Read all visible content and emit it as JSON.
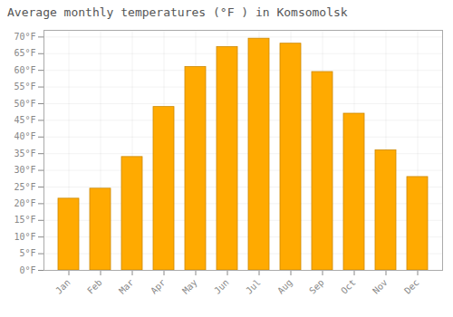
{
  "chart_data": {
    "type": "bar",
    "title": "Average monthly temperatures (°F ) in Komsomolsk",
    "categories": [
      "Jan",
      "Feb",
      "Mar",
      "Apr",
      "May",
      "Jun",
      "Jul",
      "Aug",
      "Sep",
      "Oct",
      "Nov",
      "Dec"
    ],
    "values": [
      21.5,
      24.5,
      34.0,
      49.0,
      61.0,
      67.0,
      69.5,
      68.0,
      59.5,
      47.0,
      36.0,
      28.0
    ],
    "color": "#FFAA00",
    "ylim": [
      0,
      72
    ],
    "yticks": [
      {
        "value": 0,
        "label": "0°F"
      },
      {
        "value": 5,
        "label": "5°F"
      },
      {
        "value": 10,
        "label": "10°F"
      },
      {
        "value": 15,
        "label": "15°F"
      },
      {
        "value": 20,
        "label": "20°F"
      },
      {
        "value": 25,
        "label": "25°F"
      },
      {
        "value": 30,
        "label": "30°F"
      },
      {
        "value": 35,
        "label": "35°F"
      },
      {
        "value": 40,
        "label": "40°F"
      },
      {
        "value": 45,
        "label": "45°F"
      },
      {
        "value": 50,
        "label": "50°F"
      },
      {
        "value": 55,
        "label": "55°F"
      },
      {
        "value": 60,
        "label": "60°F"
      },
      {
        "value": 65,
        "label": "65°F"
      },
      {
        "value": 70,
        "label": "70°F"
      }
    ],
    "grid": true
  }
}
